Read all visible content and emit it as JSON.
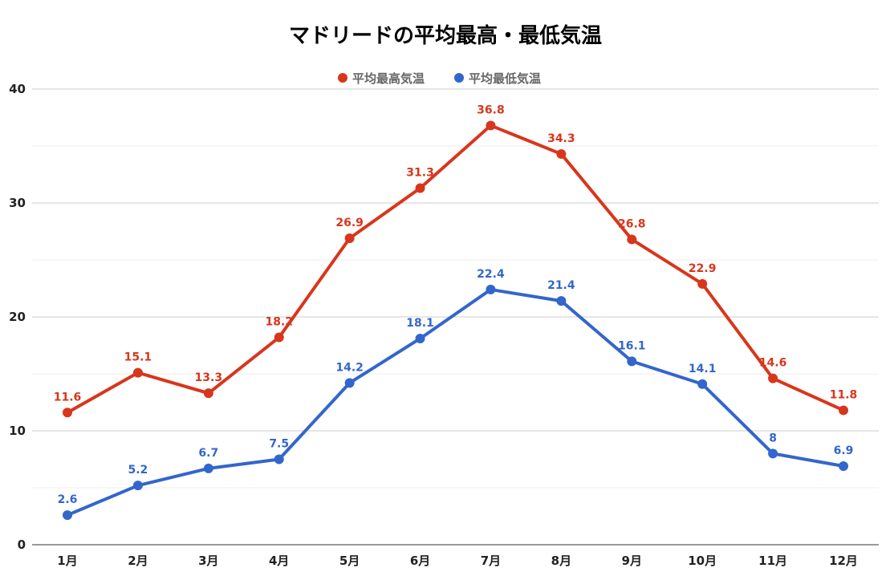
{
  "chart_data": {
    "type": "line",
    "title": "マドリードの平均最高・最低気温",
    "xlabel": "",
    "ylabel": "",
    "categories": [
      "1月",
      "2月",
      "3月",
      "4月",
      "5月",
      "6月",
      "7月",
      "8月",
      "9月",
      "10月",
      "11月",
      "12月"
    ],
    "ylim": [
      0,
      40
    ],
    "yticks": [
      0,
      10,
      20,
      30,
      40
    ],
    "grid": true,
    "legend_position": "top",
    "series": [
      {
        "name": "平均最高気温",
        "color": "#d8361c",
        "values": [
          11.6,
          15.1,
          13.3,
          18.2,
          26.9,
          31.3,
          36.8,
          34.3,
          26.8,
          22.9,
          14.6,
          11.8
        ]
      },
      {
        "name": "平均最低気温",
        "color": "#3366cc",
        "values": [
          2.6,
          5.2,
          6.7,
          7.5,
          14.2,
          18.1,
          22.4,
          21.4,
          16.1,
          14.1,
          8,
          6.9
        ]
      }
    ]
  }
}
